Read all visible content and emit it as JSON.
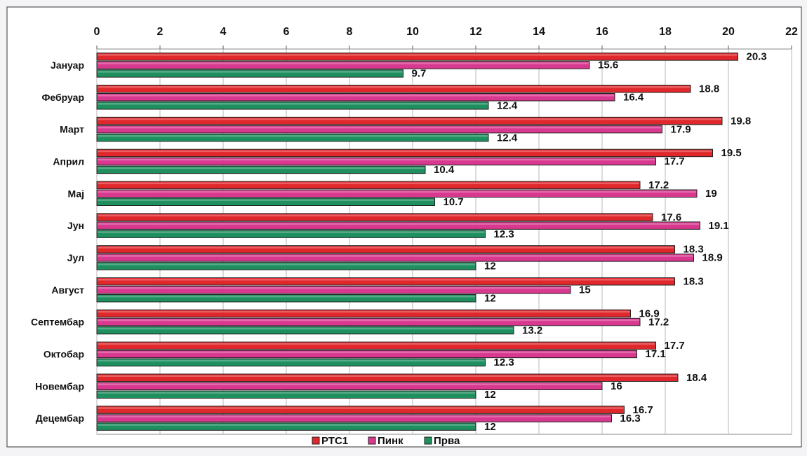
{
  "chart_data": {
    "type": "bar",
    "orientation": "horizontal",
    "title": "",
    "xlabel": "",
    "ylabel": "",
    "xlim": [
      0,
      22
    ],
    "x_ticks": [
      "0",
      "2",
      "4",
      "6",
      "8",
      "10",
      "12",
      "14",
      "16",
      "18",
      "20",
      "22"
    ],
    "x_axis_position": "top",
    "grid": true,
    "legend_position": "bottom",
    "categories": [
      "Јануар",
      "Фебруар",
      "Март",
      "Април",
      "Мај",
      "Јун",
      "Јул",
      "Август",
      "Септембар",
      "Октобар",
      "Новембар",
      "Децембар"
    ],
    "series": [
      {
        "name": "РТС1",
        "color": "#e0282c",
        "values": [
          20.3,
          18.8,
          19.8,
          19.5,
          17.2,
          17.6,
          18.3,
          18.3,
          16.9,
          17.7,
          18.4,
          16.7
        ],
        "labels": [
          "20.3",
          "18.8",
          "19.8",
          "19.5",
          "17.2",
          "17.6",
          "18.3",
          "18.3",
          "16.9",
          "17.7",
          "18.4",
          "16.7"
        ]
      },
      {
        "name": "Пинк",
        "color": "#d9388f",
        "values": [
          15.6,
          16.4,
          17.9,
          17.7,
          19,
          19.1,
          18.9,
          15,
          17.2,
          17.1,
          16,
          16.3
        ],
        "labels": [
          "15.6",
          "16.4",
          "17.9",
          "17.7",
          "19",
          "19.1",
          "18.9",
          "15",
          "17.2",
          "17.1",
          "16",
          "16.3"
        ]
      },
      {
        "name": "Прва",
        "color": "#1e8f5f",
        "values": [
          9.7,
          12.4,
          12.4,
          10.4,
          10.7,
          12.3,
          12,
          12,
          13.2,
          12.3,
          12,
          12
        ],
        "labels": [
          "9.7",
          "12.4",
          "12.4",
          "10.4",
          "10.7",
          "12.3",
          "12",
          "12",
          "13.2",
          "12.3",
          "12",
          "12"
        ]
      }
    ]
  }
}
